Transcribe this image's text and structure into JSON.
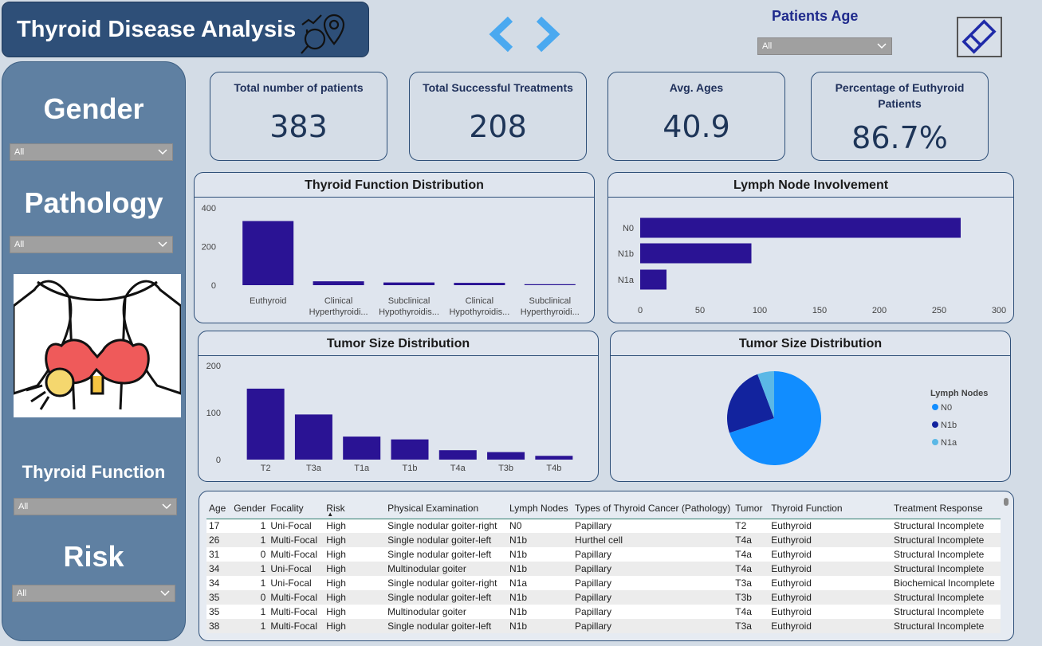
{
  "header": {
    "title": "Thyroid Disease Analysis",
    "age_filter_label": "Patients Age",
    "age_filter_value": "All"
  },
  "sidebar": {
    "gender": {
      "label": "Gender",
      "value": "All"
    },
    "pathology": {
      "label": "Pathology",
      "value": "All"
    },
    "thyroid_function": {
      "label": "Thyroid Function",
      "value": "All"
    },
    "risk": {
      "label": "Risk",
      "value": "All"
    }
  },
  "kpis": [
    {
      "title": "Total number of patients",
      "value": "383"
    },
    {
      "title": "Total Successful Treatments",
      "value": "208"
    },
    {
      "title": "Avg. Ages",
      "value": "40.9"
    },
    {
      "title": "Percentage of Euthyroid Patients",
      "value": "86.7%"
    }
  ],
  "colors": {
    "bar": "#2a1394",
    "pie_n0": "#118dff",
    "pie_n1b": "#12239e",
    "pie_n1a": "#5bb8e6",
    "sidebar": "#5f80a2",
    "title_bar": "#2e4f78"
  },
  "chart_data": [
    {
      "type": "bar",
      "title": "Thyroid Function Distribution",
      "categories": [
        "Euthyroid",
        "Clinical Hyperthyroidi...",
        "Subclinical Hypothyroidis...",
        "Clinical Hypothyroidis...",
        "Subclinical Hyperthyroidi..."
      ],
      "values": [
        332,
        20,
        14,
        12,
        5
      ],
      "y_ticks": [
        "400",
        "200",
        "0"
      ],
      "ylim": [
        0,
        400
      ]
    },
    {
      "type": "bar",
      "orientation": "horizontal",
      "title": "Lymph Node Involvement",
      "categories": [
        "N0",
        "N1b",
        "N1a"
      ],
      "values": [
        268,
        93,
        22
      ],
      "x_ticks": [
        "0",
        "50",
        "100",
        "150",
        "200",
        "250",
        "300"
      ],
      "xlim": [
        0,
        300
      ]
    },
    {
      "type": "bar",
      "title": "Tumor Size Distribution",
      "categories": [
        "T2",
        "T3a",
        "T1a",
        "T1b",
        "T4a",
        "T3b",
        "T4b"
      ],
      "values": [
        151,
        96,
        49,
        43,
        20,
        16,
        8
      ],
      "y_ticks": [
        "200",
        "100",
        "0"
      ],
      "ylim": [
        0,
        200
      ]
    },
    {
      "type": "pie",
      "title": "Tumor Size Distribution",
      "legend_title": "Lymph Nodes",
      "categories": [
        "N0",
        "N1b",
        "N1a"
      ],
      "values": [
        268,
        93,
        22
      ],
      "legend_position": "right"
    }
  ],
  "table": {
    "columns": [
      "Age",
      "Gender",
      "Focality",
      "Risk",
      "Physical Examination",
      "Lymph Nodes",
      "Types of Thyroid Cancer (Pathology)",
      "Tumor",
      "Thyroid Function",
      "Treatment Response"
    ],
    "sort_column": "Risk",
    "rows": [
      [
        "17",
        "1",
        "Uni-Focal",
        "High",
        "Single nodular goiter-right",
        "N0",
        "Papillary",
        "T2",
        "Euthyroid",
        "Structural Incomplete"
      ],
      [
        "26",
        "1",
        "Multi-Focal",
        "High",
        "Single nodular goiter-left",
        "N1b",
        "Hurthel cell",
        "T4a",
        "Euthyroid",
        "Structural Incomplete"
      ],
      [
        "31",
        "0",
        "Multi-Focal",
        "High",
        "Single nodular goiter-left",
        "N1b",
        "Papillary",
        "T4a",
        "Euthyroid",
        "Structural Incomplete"
      ],
      [
        "34",
        "1",
        "Uni-Focal",
        "High",
        "Multinodular goiter",
        "N1b",
        "Papillary",
        "T4a",
        "Euthyroid",
        "Structural Incomplete"
      ],
      [
        "34",
        "1",
        "Uni-Focal",
        "High",
        "Single nodular goiter-right",
        "N1a",
        "Papillary",
        "T3a",
        "Euthyroid",
        "Biochemical Incomplete"
      ],
      [
        "35",
        "0",
        "Multi-Focal",
        "High",
        "Single nodular goiter-left",
        "N1b",
        "Papillary",
        "T3b",
        "Euthyroid",
        "Structural Incomplete"
      ],
      [
        "35",
        "1",
        "Multi-Focal",
        "High",
        "Multinodular goiter",
        "N1b",
        "Papillary",
        "T4a",
        "Euthyroid",
        "Structural Incomplete"
      ],
      [
        "38",
        "1",
        "Multi-Focal",
        "High",
        "Single nodular goiter-left",
        "N1b",
        "Papillary",
        "T3a",
        "Euthyroid",
        "Structural Incomplete"
      ]
    ]
  }
}
